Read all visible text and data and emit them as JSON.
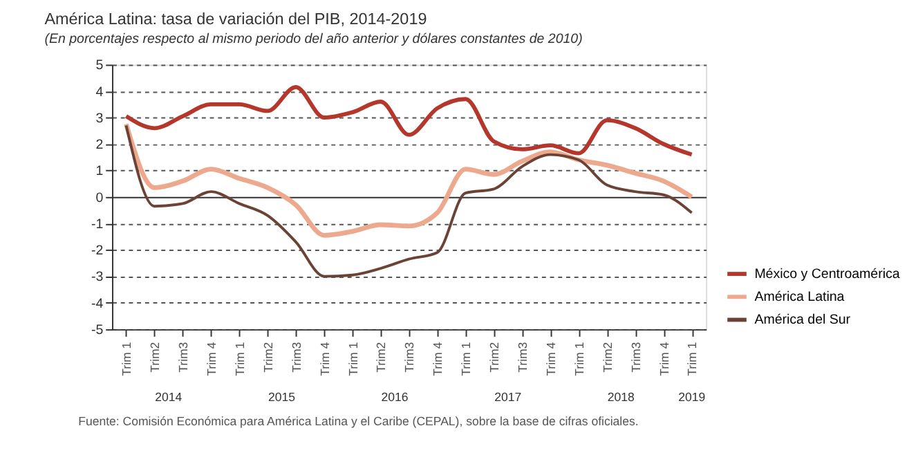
{
  "chart_data": {
    "type": "line",
    "title": "América Latina: tasa de variación del PIB, 2014-2019",
    "subtitle": "(En porcentajes respecto al mismo periodo del año anterior y dólares constantes de 2010)",
    "categories": [
      "Trim 1",
      "Trim2",
      "Trim3",
      "Trim 4",
      "Trim 1",
      "Trim2",
      "Trim3",
      "Trim 4",
      "Trim 1",
      "Trim2",
      "Trim3",
      "Trim 4",
      "Trim 1",
      "Trim2",
      "Trim3",
      "Trim 4",
      "Trim 1",
      "Trim2",
      "Trim3",
      "Trim 4",
      "Trim 1"
    ],
    "series": [
      {
        "name": "México y Centroamérica",
        "color": "#b5362a",
        "values": [
          3.05,
          2.6,
          3.05,
          3.5,
          3.5,
          3.25,
          4.15,
          3.0,
          3.2,
          3.6,
          2.35,
          3.35,
          3.7,
          2.1,
          1.8,
          1.95,
          1.65,
          2.9,
          2.6,
          2.0,
          1.6
        ]
      },
      {
        "name": "América Latina",
        "color": "#eda98e",
        "values": [
          2.75,
          0.35,
          0.6,
          1.05,
          0.7,
          0.35,
          -0.3,
          -1.45,
          -1.3,
          -1.05,
          -1.1,
          -0.6,
          1.05,
          0.85,
          1.35,
          1.7,
          1.4,
          1.2,
          0.9,
          0.6,
          0.0
        ]
      },
      {
        "name": "América del Sur",
        "color": "#6b4336",
        "values": [
          2.7,
          -0.35,
          -0.25,
          0.2,
          -0.25,
          -0.7,
          -1.7,
          -3.0,
          -2.95,
          -2.7,
          -2.35,
          -2.1,
          0.15,
          0.3,
          1.15,
          1.6,
          1.4,
          0.45,
          0.2,
          0.08,
          -0.6
        ]
      }
    ],
    "ylim": [
      -5,
      5
    ],
    "yticks": [
      -5,
      -4,
      -3,
      -2,
      -1,
      0,
      1,
      2,
      3,
      4,
      5
    ],
    "grid": "y",
    "legend": "bottom right",
    "annotations": [
      "2014",
      "2015",
      "2016",
      "2017",
      "2018",
      "2019",
      "Fuente: Comisión Económica para América Latina y el Caribe (CEPAL), sobre la base de cifras oficiales."
    ]
  }
}
